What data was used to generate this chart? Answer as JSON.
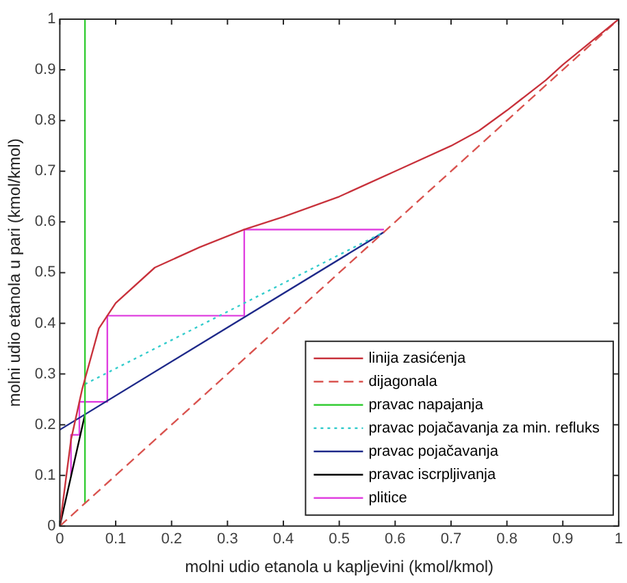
{
  "chart_data": {
    "type": "line",
    "xlabel": "molni udio etanola u kapljevini (kmol/kmol)",
    "ylabel": "molni udio etanola u pari (kmol/kmol)",
    "xlim": [
      0,
      1
    ],
    "ylim": [
      0,
      1
    ],
    "xticks": [
      0,
      0.1,
      0.2,
      0.3,
      0.4,
      0.5,
      0.6,
      0.7,
      0.8,
      0.9,
      1
    ],
    "yticks": [
      0,
      0.1,
      0.2,
      0.3,
      0.4,
      0.5,
      0.6,
      0.7,
      0.8,
      0.9,
      1
    ],
    "grid": false,
    "legend": "bottom right",
    "marker": "none",
    "series": [
      {
        "name": "linija zasićenja",
        "color": "#c8323c",
        "line_style": "solid",
        "x": [
          0,
          0.02,
          0.04,
          0.07,
          0.1,
          0.17,
          0.25,
          0.33,
          0.4,
          0.5,
          0.6,
          0.7,
          0.75,
          0.8,
          0.87,
          0.9,
          1
        ],
        "values": [
          0,
          0.17,
          0.27,
          0.39,
          0.44,
          0.51,
          0.55,
          0.585,
          0.61,
          0.65,
          0.7,
          0.75,
          0.78,
          0.82,
          0.88,
          0.91,
          1
        ]
      },
      {
        "name": "dijagonala",
        "color": "#d9534f",
        "line_style": "dashed",
        "x": [
          0,
          1
        ],
        "values": [
          0,
          1
        ]
      },
      {
        "name": "pravac napajanja",
        "color": "#33cc33",
        "line_style": "solid",
        "x": [
          0.045,
          0.045
        ],
        "values": [
          0.045,
          1
        ]
      },
      {
        "name": "pravac pojačavanja za min. refluks",
        "color": "#33cccc",
        "line_style": "dotted",
        "x": [
          0.045,
          0.58
        ],
        "values": [
          0.28,
          0.58
        ]
      },
      {
        "name": "pravac pojačavanja",
        "color": "#1f2a8a",
        "line_style": "solid",
        "x": [
          0,
          0.58
        ],
        "values": [
          0.19,
          0.58
        ]
      },
      {
        "name": "pravac iscrpljivanja",
        "color": "#000000",
        "line_style": "solid",
        "x": [
          0,
          0.045
        ],
        "values": [
          0,
          0.22
        ]
      },
      {
        "name": "plitice",
        "color": "#e040e0",
        "line_style": "solid",
        "x": [
          0.58,
          0.33,
          0.33,
          0.085,
          0.085,
          0.035,
          0.035,
          0.02,
          0.02
        ],
        "values": [
          0.585,
          0.585,
          0.415,
          0.415,
          0.245,
          0.245,
          0.18,
          0.18,
          0.1
        ]
      }
    ]
  }
}
